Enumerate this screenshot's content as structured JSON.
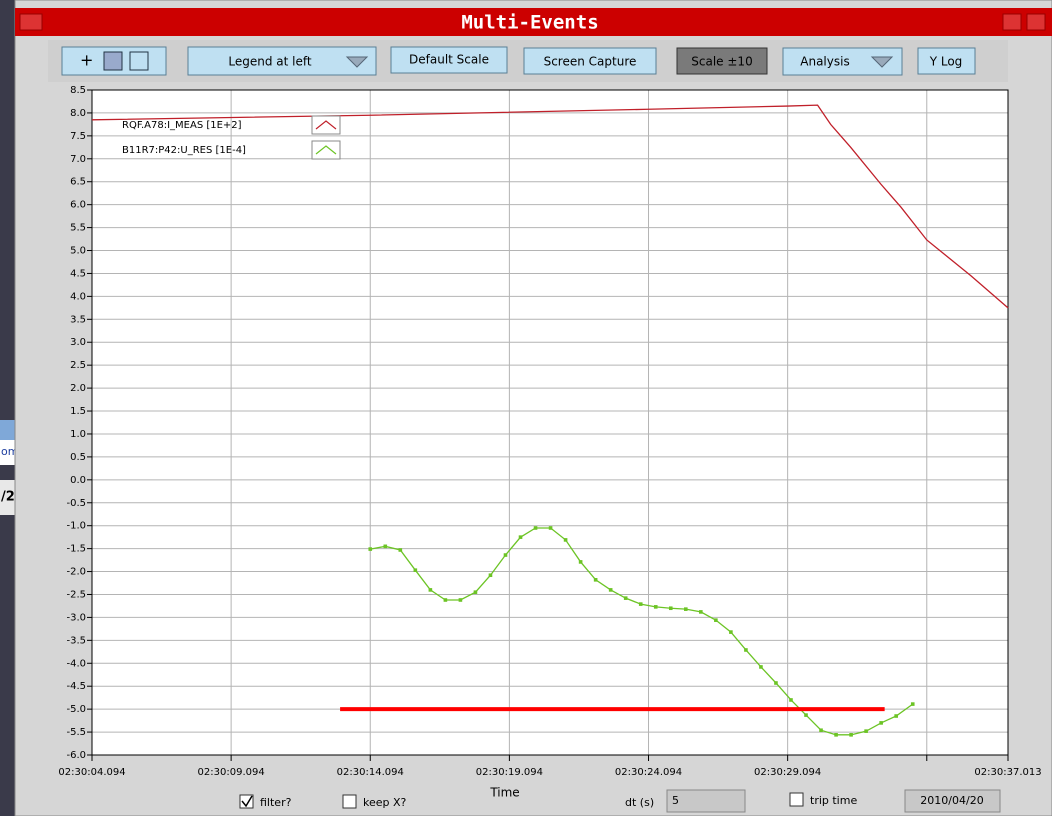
{
  "window": {
    "title": "Multi-Events"
  },
  "toolbar": {
    "legend_menu": "Legend at left",
    "default_scale": "Default Scale",
    "screen_capture": "Screen Capture",
    "scale": "Scale ±10",
    "analysis": "Analysis",
    "y_log": "Y Log"
  },
  "background_fragments": [
    "om",
    "/2"
  ],
  "chart_data": {
    "type": "line",
    "xlabel": "Time",
    "xlim": [
      4.094,
      37.013
    ],
    "xticks": [
      {
        "value": 4.094,
        "label": "02:30:04.094"
      },
      {
        "value": 9.094,
        "label": "02:30:09.094"
      },
      {
        "value": 14.094,
        "label": "02:30:14.094"
      },
      {
        "value": 19.094,
        "label": "02:30:19.094"
      },
      {
        "value": 24.094,
        "label": "02:30:24.094"
      },
      {
        "value": 29.094,
        "label": "02:30:29.094"
      },
      {
        "value": 34.094,
        "label": null
      },
      {
        "value": 37.013,
        "label": "02:30:37.013"
      }
    ],
    "ylim": [
      -6,
      8.5
    ],
    "yticks": [
      {
        "value": 8.5,
        "label": "8.5"
      },
      {
        "value": 8,
        "label": "8.0"
      },
      {
        "value": 7.5,
        "label": "7.5"
      },
      {
        "value": 7,
        "label": "7.0"
      },
      {
        "value": 6.5,
        "label": "6.5"
      },
      {
        "value": 6,
        "label": "6.0"
      },
      {
        "value": 5.5,
        "label": "5.5"
      },
      {
        "value": 5,
        "label": "5.0"
      },
      {
        "value": 4.5,
        "label": "4.5"
      },
      {
        "value": 4,
        "label": "4.0"
      },
      {
        "value": 3.5,
        "label": "3.5"
      },
      {
        "value": 3,
        "label": "3.0"
      },
      {
        "value": 2.5,
        "label": "2.5"
      },
      {
        "value": 2,
        "label": "2.0"
      },
      {
        "value": 1.5,
        "label": "1.5"
      },
      {
        "value": 1,
        "label": "1.0"
      },
      {
        "value": 0.5,
        "label": "0.5"
      },
      {
        "value": 0,
        "label": "0.0"
      },
      {
        "value": -0.5,
        "label": "-0.5"
      },
      {
        "value": -1,
        "label": "-1.0"
      },
      {
        "value": -1.5,
        "label": "-1.5"
      },
      {
        "value": -2,
        "label": "-2.0"
      },
      {
        "value": -2.5,
        "label": "-2.5"
      },
      {
        "value": -3,
        "label": "-3.0"
      },
      {
        "value": -3.5,
        "label": "-3.5"
      },
      {
        "value": -4,
        "label": "-4.0"
      },
      {
        "value": -4.5,
        "label": "-4.5"
      },
      {
        "value": -5,
        "label": "-5.0"
      },
      {
        "value": -5.5,
        "label": "-5.5"
      },
      {
        "value": -6,
        "label": "-6.0"
      }
    ],
    "grid": true,
    "legend": "left",
    "series": [
      {
        "name": "RQF.A78:I_MEAS [1E+2]",
        "color": "#c0202a",
        "markers": false,
        "x": [
          4.094,
          14.094,
          24.094,
          29.094,
          30.17,
          30.64,
          31.36,
          32.44,
          33.16,
          34.094,
          35.68,
          37.013
        ],
        "values": [
          7.85,
          7.95,
          8.08,
          8.15,
          8.17,
          7.75,
          7.25,
          6.45,
          5.95,
          5.23,
          4.45,
          3.75
        ]
      },
      {
        "name": "B11R7:P42:U_RES [1E-4]",
        "color": "#6cc425",
        "markers": true,
        "x": [
          14.094,
          14.634,
          15.174,
          15.714,
          16.254,
          16.794,
          17.334,
          17.874,
          18.414,
          18.954,
          19.494,
          20.034,
          20.574,
          21.114,
          21.654,
          22.194,
          22.734,
          23.274,
          23.814,
          24.354,
          24.894,
          25.434,
          25.974,
          26.514,
          27.054,
          27.594,
          28.134,
          28.674,
          29.214,
          29.754,
          30.294,
          30.834,
          31.374,
          31.914,
          32.454,
          32.994,
          33.59
        ],
        "values": [
          -1.51,
          -1.45,
          -1.53,
          -1.97,
          -2.4,
          -2.62,
          -2.62,
          -2.45,
          -2.08,
          -1.64,
          -1.25,
          -1.05,
          -1.05,
          -1.31,
          -1.79,
          -2.18,
          -2.4,
          -2.58,
          -2.71,
          -2.77,
          -2.8,
          -2.82,
          -2.88,
          -3.06,
          -3.32,
          -3.71,
          -4.08,
          -4.43,
          -4.8,
          -5.13,
          -5.46,
          -5.56,
          -5.56,
          -5.48,
          -5.3,
          -5.15,
          -4.89
        ]
      }
    ],
    "reference_line": {
      "y": -5,
      "x": [
        13.01,
        32.58
      ],
      "color": "#ff0000"
    }
  },
  "footer": {
    "filter": {
      "label": "filter?",
      "checked": true
    },
    "keep_x": {
      "label": "keep X?",
      "checked": false
    },
    "dt_label": "dt (s)",
    "dt_value": "5",
    "trip_time": {
      "label": "trip time",
      "checked": false
    },
    "date": "2010/04/20"
  }
}
